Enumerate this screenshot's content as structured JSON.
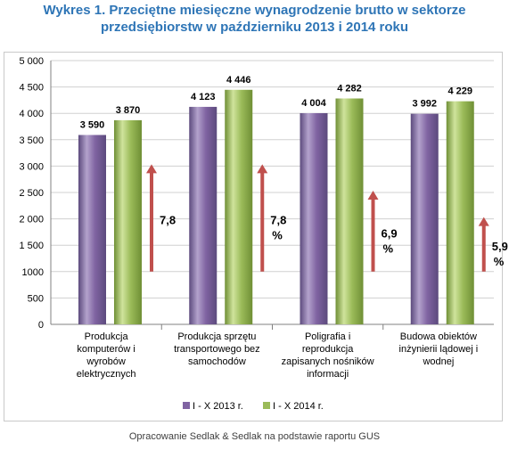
{
  "title_line1": "Wykres 1. Przeciętne miesięczne wynagrodzenie brutto w sektorze",
  "title_line2": "przedsiębiorstw w październiku 2013 i 2014 roku",
  "source_note": "Opracowanie Sedlak & Sedlak na podstawie raportu GUS",
  "colors": {
    "series_2013": "#8064a2",
    "series_2014": "#9bbb59",
    "arrow": "#c0504d",
    "title": "#2e75b6"
  },
  "chart_data": {
    "type": "bar",
    "title": "Wykres 1. Przeciętne miesięczne wynagrodzenie brutto w sektorze przedsiębiorstw w październiku 2013 i 2014 roku",
    "categories": [
      [
        "Produkcja",
        "komputerów i",
        "wyrobów",
        "elektrycznych"
      ],
      [
        "Produkcja sprzętu",
        "transportowego bez",
        "samochodów"
      ],
      [
        "Poligrafia i",
        "reprodukcja",
        "zapisanych nośników",
        "informacji"
      ],
      [
        "Budowa obiektów",
        "inżynierii lądowej i",
        "wodnej"
      ]
    ],
    "series": [
      {
        "name": "I - X  2013 r.",
        "values": [
          3590,
          4123,
          4004,
          3992
        ],
        "labels": [
          "3 590",
          "4 123",
          "4 004",
          "3 992"
        ]
      },
      {
        "name": "I - X  2014 r.",
        "values": [
          3870,
          4446,
          4282,
          4229
        ],
        "labels": [
          "3 870",
          "4 446",
          "4 282",
          "4 229"
        ]
      }
    ],
    "growth": [
      {
        "label": "7,8",
        "unit": ""
      },
      {
        "label": "7,8",
        "unit": "%"
      },
      {
        "label": "6,9",
        "unit": "%"
      },
      {
        "label": "5,9",
        "unit": "%"
      }
    ],
    "growth_arrow_range": [
      [
        1000,
        3000
      ],
      [
        1000,
        3000
      ],
      [
        1000,
        2500
      ],
      [
        1000,
        2000
      ]
    ],
    "ylim": [
      0,
      5000
    ],
    "yticks": [
      0,
      500,
      1000,
      1500,
      2000,
      2500,
      3000,
      3500,
      4000,
      4500,
      5000
    ],
    "ytick_labels": [
      "0",
      "500",
      "1000",
      "1 500",
      "2 000",
      "2 500",
      "3 000",
      "3 500",
      "4 000",
      "4 500",
      "5 000"
    ],
    "grid": true,
    "legend_position": "bottom"
  }
}
